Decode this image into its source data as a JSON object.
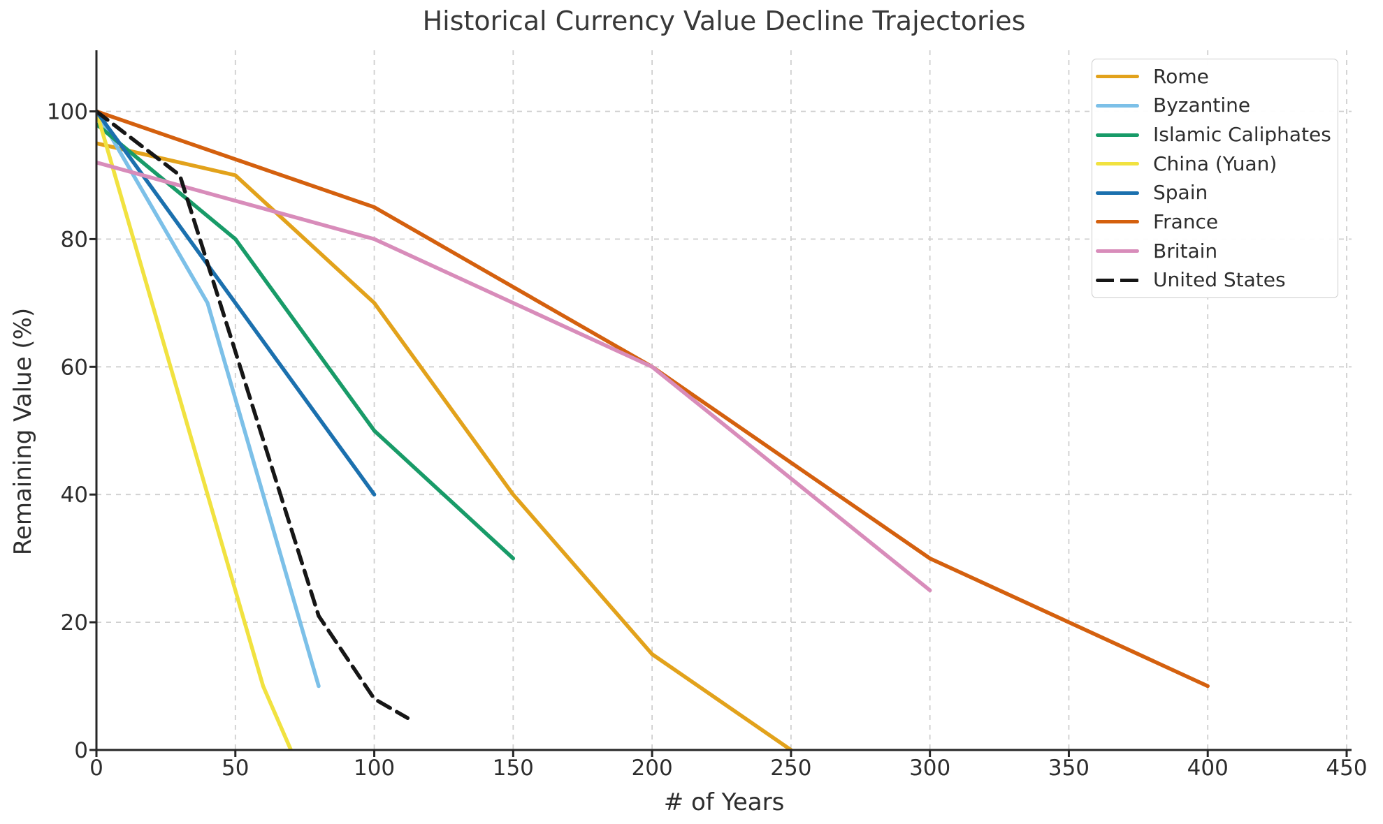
{
  "chart_data": {
    "type": "line",
    "title": "Historical Currency Value Decline Trajectories",
    "xlabel": "# of Years",
    "ylabel": "Remaining Value (%)",
    "xlim": [
      0,
      452
    ],
    "ylim": [
      0,
      110
    ],
    "xticks": [
      0,
      50,
      100,
      150,
      200,
      250,
      300,
      350,
      400,
      450
    ],
    "yticks": [
      0,
      20,
      40,
      60,
      80,
      100
    ],
    "grid": true,
    "legend_position": "upper right",
    "series": [
      {
        "name": "Rome",
        "color": "#E2A21B",
        "dashed": false,
        "points": [
          [
            0,
            95
          ],
          [
            50,
            90
          ],
          [
            100,
            70
          ],
          [
            150,
            40
          ],
          [
            200,
            15
          ],
          [
            250,
            0
          ]
        ]
      },
      {
        "name": "Byzantine",
        "color": "#7CC0E8",
        "dashed": false,
        "points": [
          [
            0,
            100
          ],
          [
            40,
            70
          ],
          [
            80,
            10
          ]
        ]
      },
      {
        "name": "Islamic Caliphates",
        "color": "#189B68",
        "dashed": false,
        "points": [
          [
            0,
            98
          ],
          [
            50,
            80
          ],
          [
            100,
            50
          ],
          [
            150,
            30
          ]
        ]
      },
      {
        "name": "China (Yuan)",
        "color": "#F1E240",
        "dashed": false,
        "points": [
          [
            0,
            100
          ],
          [
            60,
            10
          ],
          [
            70,
            0
          ]
        ]
      },
      {
        "name": "Spain",
        "color": "#1B70AE",
        "dashed": false,
        "points": [
          [
            0,
            100
          ],
          [
            100,
            40
          ]
        ]
      },
      {
        "name": "France",
        "color": "#D4600E",
        "dashed": false,
        "points": [
          [
            0,
            100
          ],
          [
            100,
            85
          ],
          [
            200,
            60
          ],
          [
            300,
            30
          ],
          [
            400,
            10
          ]
        ]
      },
      {
        "name": "Britain",
        "color": "#D88CBA",
        "dashed": false,
        "points": [
          [
            0,
            92
          ],
          [
            100,
            80
          ],
          [
            200,
            60
          ],
          [
            300,
            25
          ]
        ]
      },
      {
        "name": "United States",
        "color": "#161616",
        "dashed": true,
        "points": [
          [
            0,
            100
          ],
          [
            30,
            90
          ],
          [
            80,
            21
          ],
          [
            100,
            8
          ],
          [
            112,
            5
          ]
        ]
      }
    ]
  },
  "colors": {
    "background": "#ffffff",
    "grid": "#cfcfcf",
    "spine": "#262626",
    "tick_text": "#2d2d2d",
    "title_text": "#383838",
    "legend_border": "#cccccc"
  }
}
